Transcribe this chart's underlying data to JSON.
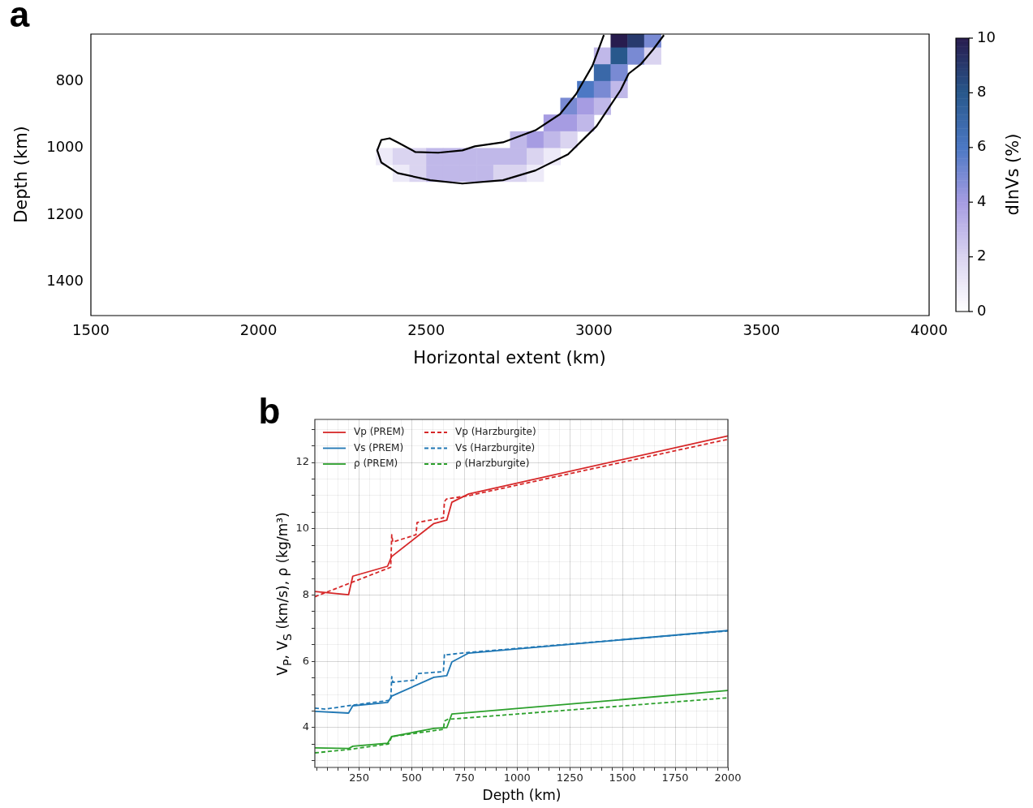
{
  "chart_data": [
    {
      "type": "heatmap",
      "annotations": [
        "a"
      ],
      "xlabel": "Horizontal extent (km)",
      "ylabel": "Depth (km)",
      "clabel": "dlnVs (%)",
      "x": [
        2375,
        2425,
        2475,
        2525,
        2575,
        2625,
        2675,
        2725,
        2775,
        2825,
        2875,
        2925,
        2975,
        3025,
        3075,
        3125,
        3175
      ],
      "y": [
        675,
        725,
        775,
        825,
        875,
        925,
        975,
        1025,
        1075
      ],
      "cells": [
        [
          null,
          null,
          null,
          null,
          null,
          null,
          null,
          null,
          null,
          null,
          null,
          null,
          null,
          null,
          10,
          9,
          5
        ],
        [
          null,
          null,
          null,
          null,
          null,
          null,
          null,
          null,
          null,
          null,
          null,
          null,
          null,
          3,
          8,
          5,
          2
        ],
        [
          null,
          null,
          null,
          null,
          null,
          null,
          null,
          null,
          null,
          null,
          null,
          null,
          null,
          7,
          5,
          null,
          null
        ],
        [
          null,
          null,
          null,
          null,
          null,
          null,
          null,
          null,
          null,
          null,
          null,
          null,
          6,
          5,
          3,
          null,
          null
        ],
        [
          null,
          null,
          null,
          null,
          null,
          null,
          null,
          null,
          null,
          null,
          null,
          5,
          4,
          3,
          null,
          null,
          null
        ],
        [
          null,
          null,
          null,
          null,
          null,
          null,
          null,
          null,
          null,
          null,
          4,
          4,
          3,
          null,
          null,
          null,
          null
        ],
        [
          null,
          null,
          null,
          null,
          null,
          null,
          null,
          null,
          3,
          4,
          3,
          2,
          null,
          null,
          null,
          null,
          null
        ],
        [
          1,
          2,
          2,
          3,
          3,
          3,
          3,
          3,
          3,
          2,
          1,
          null,
          null,
          null,
          null,
          null,
          null
        ],
        [
          null,
          1,
          2,
          3,
          3,
          3,
          3,
          2,
          2,
          1,
          null,
          null,
          null,
          null,
          null,
          null,
          null
        ]
      ],
      "series": [
        {
          "type": "line",
          "color": "#000000",
          "x": [
            3030,
            2996,
            2947,
            2899,
            2826,
            2729,
            2645,
            2608,
            2536,
            2468,
            2415,
            2391,
            2366,
            2354,
            2366,
            2415,
            2512,
            2608,
            2729,
            2826,
            2923,
            3008,
            3080,
            3104,
            3141,
            3177,
            3209
          ],
          "values": [
            663,
            754,
            839,
            899,
            947,
            983,
            995,
            1007,
            1014,
            1012,
            983,
            971,
            976,
            1007,
            1043,
            1075,
            1096,
            1106,
            1096,
            1067,
            1019,
            935,
            827,
            778,
            749,
            706,
            663
          ]
        }
      ],
      "xlim": [
        1500,
        4000
      ],
      "xticks": [
        1500,
        2000,
        2500,
        3000,
        3500,
        4000
      ],
      "ylim": [
        1500,
        660
      ],
      "yticks": [
        800,
        1000,
        1200,
        1400
      ],
      "clim": [
        0,
        10
      ],
      "cticks": [
        0,
        2,
        4,
        6,
        8,
        10
      ]
    },
    {
      "type": "line",
      "annotations": [
        "b"
      ],
      "xlabel": "Depth (km)",
      "ylabel": "V$_{P}$, V$_{S}$ (km/s), ρ (kg/m³)",
      "legend": "top left",
      "grid": true,
      "series": [
        {
          "name": "Vp (PREM)",
          "color": "#d62728",
          "x": [
            40,
            200,
            220,
            385,
            404,
            605,
            666,
            690,
            770,
            2000
          ],
          "values": [
            8.11,
            8.01,
            8.57,
            8.87,
            9.16,
            10.16,
            10.26,
            10.8,
            11.05,
            12.8
          ]
        },
        {
          "name": "Vs (PREM)",
          "color": "#1f77b4",
          "x": [
            40,
            200,
            220,
            385,
            404,
            605,
            666,
            690,
            770,
            2000
          ],
          "values": [
            4.49,
            4.44,
            4.66,
            4.76,
            4.95,
            5.52,
            5.57,
            5.98,
            6.25,
            6.93
          ]
        },
        {
          "name": "ρ (PREM)",
          "color": "#2ca02c",
          "x": [
            40,
            200,
            220,
            385,
            404,
            605,
            666,
            690,
            2000
          ],
          "values": [
            3.39,
            3.37,
            3.44,
            3.53,
            3.73,
            3.98,
            4.0,
            4.41,
            5.12
          ]
        },
        {
          "name": "Vp (Harzburgite)",
          "color": "#d62728",
          "line_style": "dashed",
          "x": [
            40,
            400,
            405,
            410,
            520,
            525,
            650,
            655,
            665,
            770,
            2000
          ],
          "values": [
            7.95,
            8.84,
            9.82,
            9.6,
            9.82,
            10.19,
            10.33,
            10.82,
            10.9,
            11.0,
            12.7
          ]
        },
        {
          "name": "Vs (Harzburgite)",
          "color": "#1f77b4",
          "line_style": "dashed",
          "x": [
            40,
            90,
            220,
            400,
            405,
            410,
            520,
            525,
            650,
            655,
            665,
            770,
            2000
          ],
          "values": [
            4.59,
            4.56,
            4.68,
            4.83,
            5.54,
            5.37,
            5.44,
            5.63,
            5.69,
            6.22,
            6.2,
            6.27,
            6.92
          ]
        },
        {
          "name": "ρ (Harzburgite)",
          "color": "#2ca02c",
          "line_style": "dashed",
          "x": [
            40,
            200,
            390,
            405,
            650,
            655,
            670,
            2000
          ],
          "values": [
            3.24,
            3.34,
            3.51,
            3.73,
            3.95,
            4.2,
            4.25,
            4.9
          ]
        }
      ],
      "xlim": [
        40,
        2000
      ],
      "xticks": [
        {
          "value": 50,
          "label": null
        },
        {
          "value": 100,
          "label": null
        },
        {
          "value": 150,
          "label": null
        },
        {
          "value": 200,
          "label": null
        },
        250,
        {
          "value": 300,
          "label": null
        },
        {
          "value": 350,
          "label": null
        },
        {
          "value": 400,
          "label": null
        },
        {
          "value": 450,
          "label": null
        },
        500,
        {
          "value": 550,
          "label": null
        },
        {
          "value": 600,
          "label": null
        },
        {
          "value": 650,
          "label": null
        },
        {
          "value": 700,
          "label": null
        },
        750,
        {
          "value": 800,
          "label": null
        },
        {
          "value": 850,
          "label": null
        },
        {
          "value": 900,
          "label": null
        },
        {
          "value": 950,
          "label": null
        },
        1000,
        {
          "value": 1050,
          "label": null
        },
        {
          "value": 1100,
          "label": null
        },
        {
          "value": 1150,
          "label": null
        },
        {
          "value": 1200,
          "label": null
        },
        1250,
        {
          "value": 1300,
          "label": null
        },
        {
          "value": 1350,
          "label": null
        },
        {
          "value": 1400,
          "label": null
        },
        {
          "value": 1450,
          "label": null
        },
        1500,
        {
          "value": 1550,
          "label": null
        },
        {
          "value": 1600,
          "label": null
        },
        {
          "value": 1650,
          "label": null
        },
        {
          "value": 1700,
          "label": null
        },
        1750,
        {
          "value": 1800,
          "label": null
        },
        {
          "value": 1850,
          "label": null
        },
        {
          "value": 1900,
          "label": null
        },
        {
          "value": 1950,
          "label": null
        },
        2000
      ],
      "ylim": [
        2.8,
        13.3
      ],
      "yticks": [
        {
          "value": 3,
          "label": null
        },
        {
          "value": 3.5,
          "label": null
        },
        4,
        {
          "value": 4.5,
          "label": null
        },
        {
          "value": 5,
          "label": null
        },
        {
          "value": 5.5,
          "label": null
        },
        6,
        {
          "value": 6.5,
          "label": null
        },
        {
          "value": 7,
          "label": null
        },
        {
          "value": 7.5,
          "label": null
        },
        8,
        {
          "value": 8.5,
          "label": null
        },
        {
          "value": 9,
          "label": null
        },
        {
          "value": 9.5,
          "label": null
        },
        10,
        {
          "value": 10.5,
          "label": null
        },
        {
          "value": 11,
          "label": null
        },
        {
          "value": 11.5,
          "label": null
        },
        12,
        {
          "value": 12.5,
          "label": null
        },
        {
          "value": 13,
          "label": null
        }
      ]
    }
  ]
}
